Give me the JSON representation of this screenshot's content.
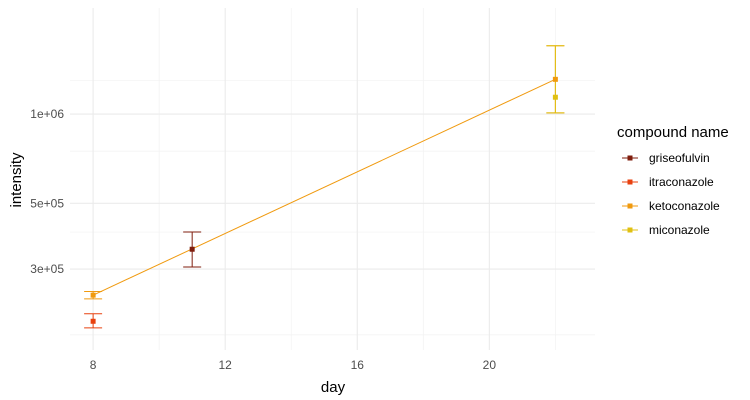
{
  "chart_data": {
    "type": "scatter",
    "xlabel": "day",
    "ylabel": "intensity",
    "x_scale": "linear",
    "y_scale": "log",
    "xlim": [
      7.3,
      23.2
    ],
    "ylim": [
      160000,
      2280000
    ],
    "x_ticks": [
      8,
      12,
      16,
      20
    ],
    "x_tick_labels": [
      "8",
      "12",
      "16",
      "20"
    ],
    "y_ticks": [
      300000,
      500000,
      1000000
    ],
    "y_tick_labels": [
      "3e+05",
      "5e+05",
      "1e+06"
    ],
    "x_minor_ticks": [
      10,
      14,
      18,
      22
    ],
    "y_minor_ticks": [
      180000,
      400000,
      750000,
      1300000
    ],
    "grid": true,
    "legend": {
      "title": "compound name",
      "position": "right"
    },
    "series": [
      {
        "name": "griseofulvin",
        "color": "#7f1d0d",
        "points": [
          {
            "x": 11,
            "y": 350000,
            "ymin": 305000,
            "ymax": 400000
          }
        ]
      },
      {
        "name": "itraconazole",
        "color": "#e8410f",
        "points": [
          {
            "x": 8,
            "y": 200000,
            "ymin": 190000,
            "ymax": 212000
          }
        ]
      },
      {
        "name": "ketoconazole",
        "color": "#f09a0f",
        "points": [
          {
            "x": 8,
            "y": 245000,
            "ymin": 238000,
            "ymax": 252000
          },
          {
            "x": 22,
            "y": 1310000,
            "ymin": 1010000,
            "ymax": 1700000
          }
        ]
      },
      {
        "name": "miconazole",
        "color": "#e0c012",
        "points": [
          {
            "x": 22,
            "y": 1140000,
            "ymin": 1010000,
            "ymax": 1700000
          }
        ]
      }
    ],
    "trend_line": {
      "color": "#f09a0f",
      "x": [
        8,
        22
      ],
      "y": [
        245000,
        1310000
      ]
    }
  }
}
